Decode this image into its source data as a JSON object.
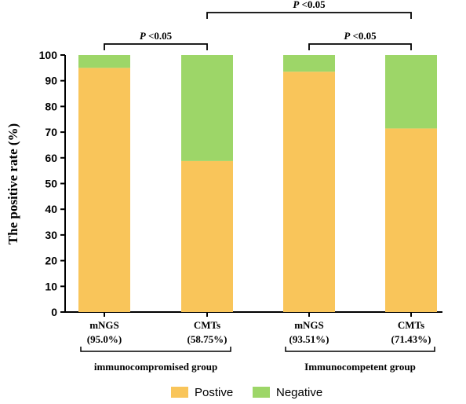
{
  "chart_data": {
    "type": "bar",
    "stacked": true,
    "ylabel": "The positive rate (%)",
    "ylim": [
      0,
      100
    ],
    "yticks": [
      0,
      10,
      20,
      30,
      40,
      50,
      60,
      70,
      80,
      90,
      100
    ],
    "categories": [
      {
        "line1": "mNGS",
        "line2": "(95.0%)"
      },
      {
        "line1": "CMTs",
        "line2": "(58.75%)"
      },
      {
        "line1": "mNGS",
        "line2": "(93.51%)"
      },
      {
        "line1": "CMTs",
        "line2": "(71.43%)"
      }
    ],
    "series": [
      {
        "name": "Postive",
        "color": "#F9C55A",
        "values": [
          95.0,
          58.75,
          93.51,
          71.43
        ]
      },
      {
        "name": "Negative",
        "color": "#9DD668",
        "values": [
          5.0,
          41.25,
          6.49,
          28.57
        ]
      }
    ],
    "groups": [
      {
        "label": "immunocompromised group",
        "categories": [
          0,
          1
        ]
      },
      {
        "label": "Immunocompetent  group",
        "categories": [
          2,
          3
        ]
      }
    ],
    "significance": [
      {
        "from": 0,
        "to": 1,
        "label_italic": "P",
        "label_rest": " <0.05"
      },
      {
        "from": 1,
        "to": 3,
        "label_italic": "P",
        "label_rest": " <0.05"
      },
      {
        "from": 2,
        "to": 3,
        "label_italic": "P",
        "label_rest": " <0.05"
      }
    ],
    "legend_position": "bottom-center"
  }
}
